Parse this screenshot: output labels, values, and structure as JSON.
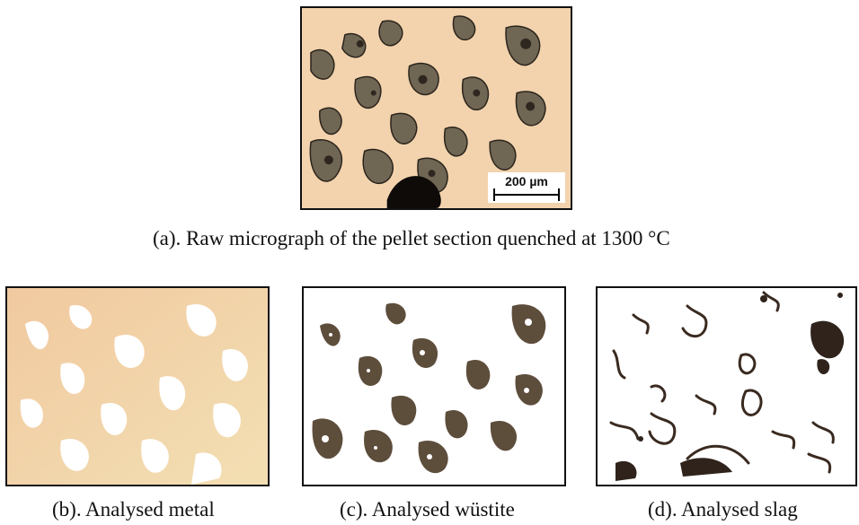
{
  "figure": {
    "panel_a": {
      "caption": "(a). Raw micrograph of the pellet section quenched at 1300 °C",
      "scale_bar": "200 µm"
    },
    "panel_b": {
      "caption": "(b). Analysed metal"
    },
    "panel_c": {
      "caption": "(c). Analysed wüstite"
    },
    "panel_d": {
      "caption": "(d). Analysed slag"
    }
  },
  "colors": {
    "metal": "#f3d2ae",
    "wustite": "#6f6656",
    "slag": "#2a211a",
    "analysed_wustite": "#5b4a38",
    "analysed_slag": "#3a2a20",
    "analysed_metal": "#f0cfa8"
  }
}
